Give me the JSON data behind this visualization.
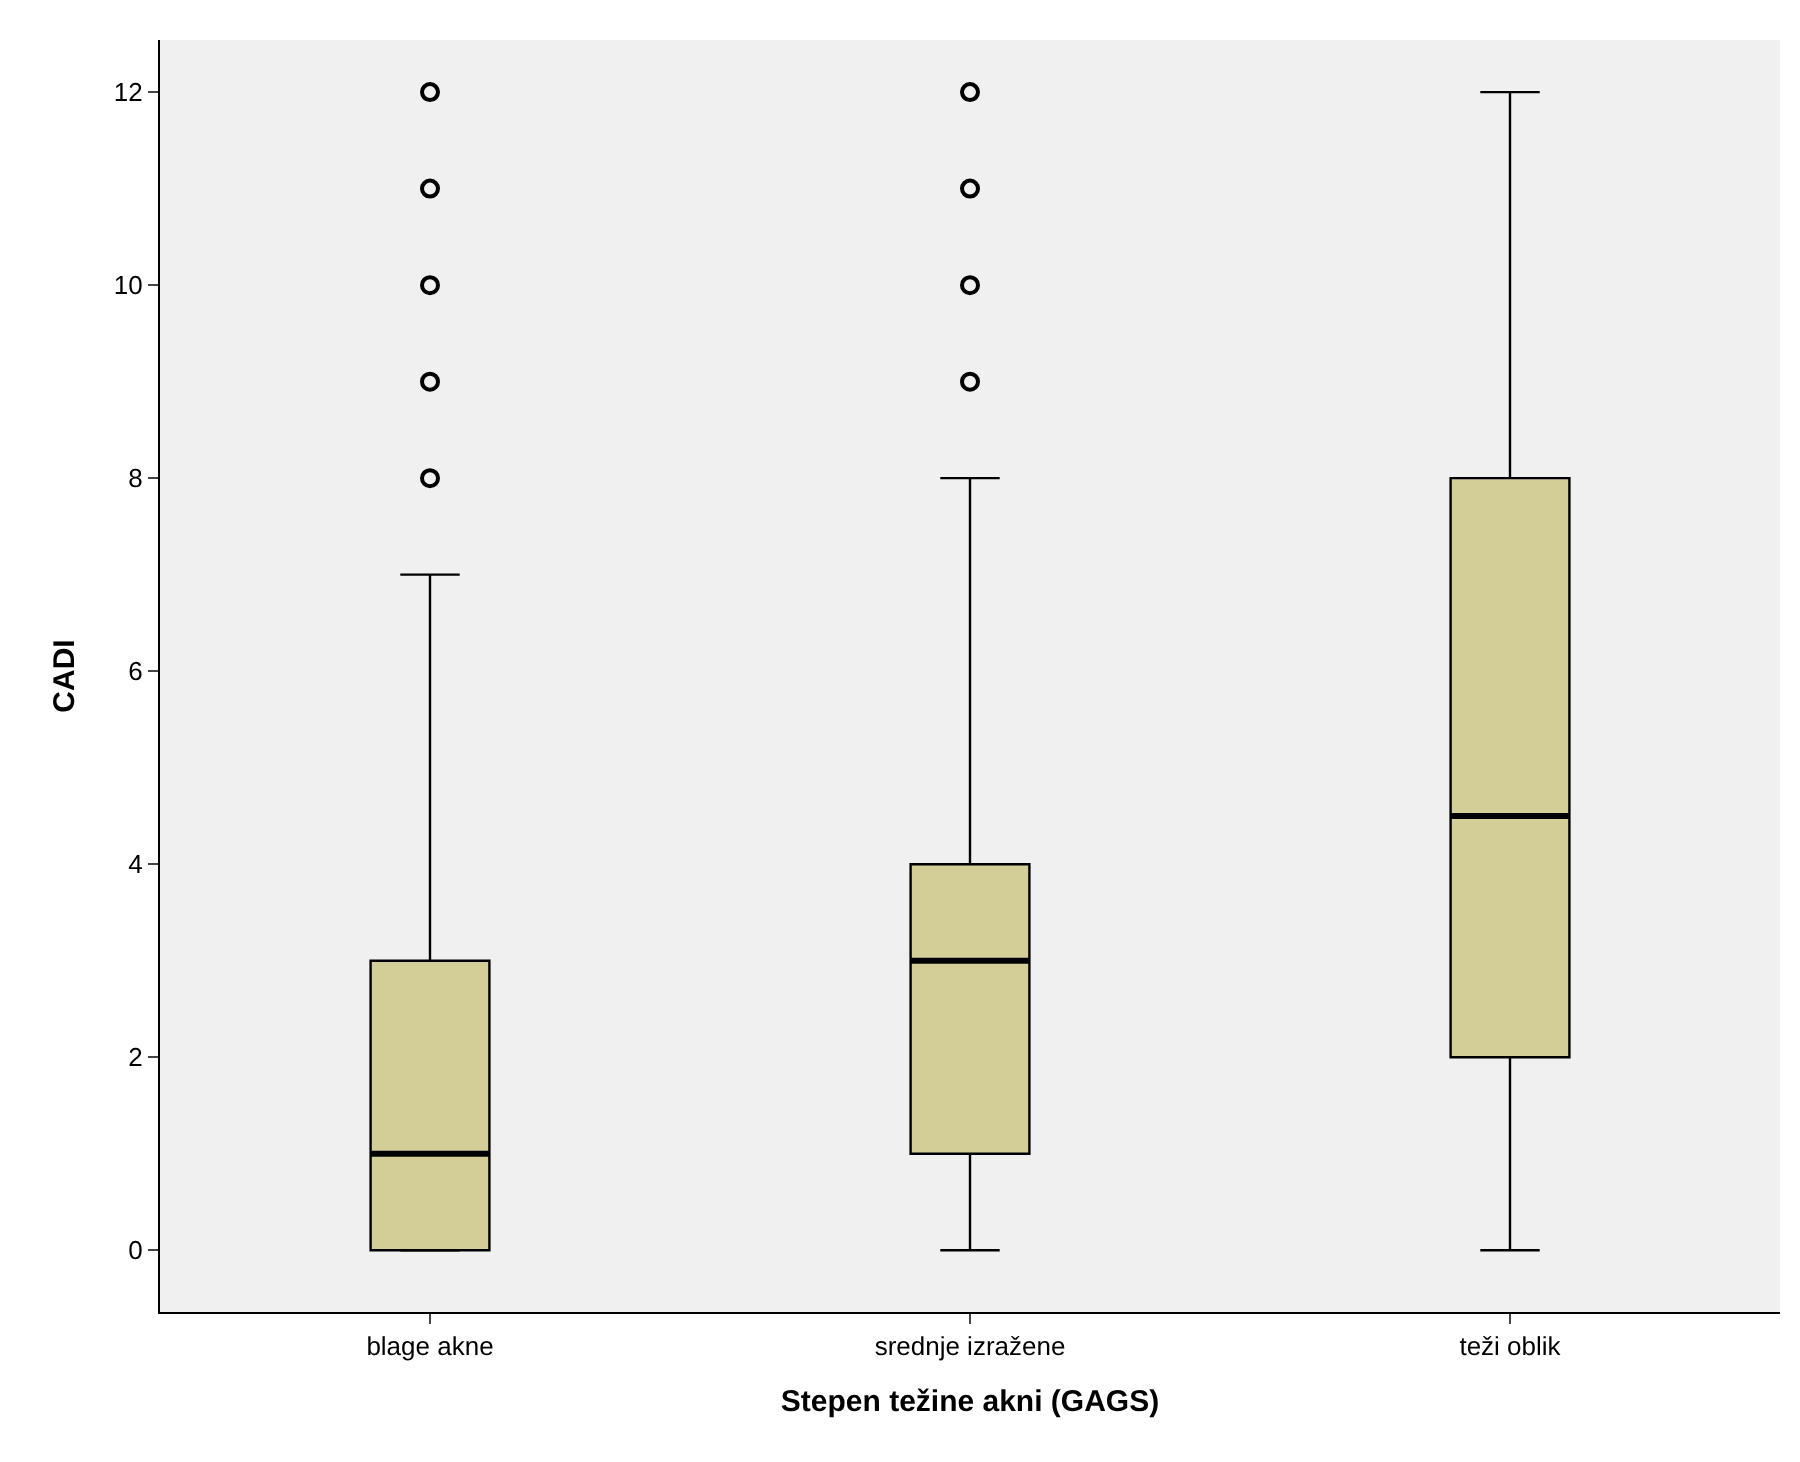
{
  "chart_data": {
    "type": "box",
    "xlabel": "Stepen težine akni (GAGS)",
    "ylabel": "CADI",
    "categories": [
      "blage akne",
      "srednje izražene",
      "teži oblik"
    ],
    "boxes": [
      {
        "low": 0,
        "q1": 0,
        "median": 1,
        "q3": 3,
        "high": 7,
        "outliers": [
          8,
          9,
          10,
          11,
          12
        ]
      },
      {
        "low": 0,
        "q1": 1,
        "median": 3,
        "q3": 4,
        "high": 8,
        "outliers": [
          9,
          10,
          11,
          12
        ]
      },
      {
        "low": 0,
        "q1": 2,
        "median": 4.5,
        "q3": 8,
        "high": 12
      }
    ],
    "color": "#d3ce97",
    "ylim": [
      -0.64,
      12.54
    ],
    "yticks": [
      0,
      2,
      4,
      6,
      8,
      10,
      12
    ],
    "grid": false
  }
}
